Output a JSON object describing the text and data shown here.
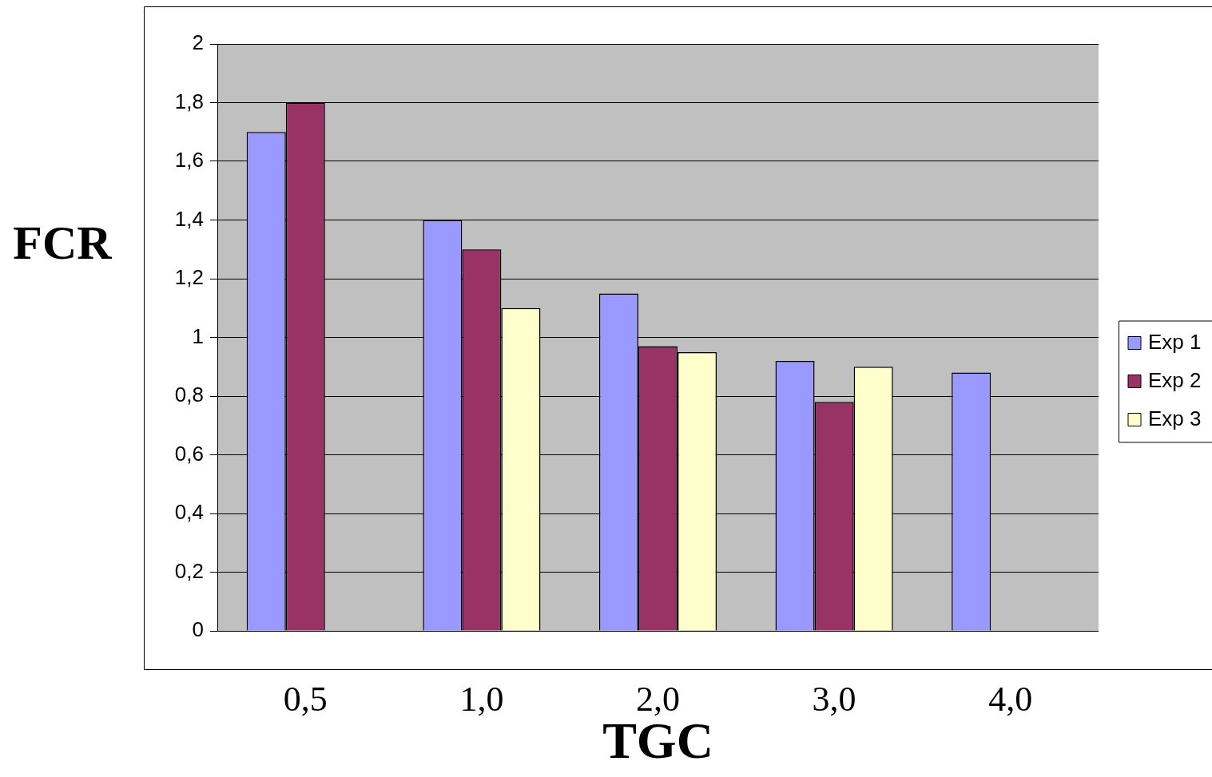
{
  "chart_data": {
    "type": "bar",
    "xlabel": "TGC",
    "ylabel": "FCR",
    "categories": [
      "0,5",
      "1,0",
      "2,0",
      "3,0",
      "4,0"
    ],
    "series": [
      {
        "name": "Exp 1",
        "color": "#9999ff",
        "values": [
          1.7,
          1.4,
          1.15,
          0.92,
          0.88
        ]
      },
      {
        "name": "Exp 2",
        "color": "#993366",
        "values": [
          1.8,
          1.3,
          0.97,
          0.78,
          null
        ]
      },
      {
        "name": "Exp 3",
        "color": "#ffffcc",
        "values": [
          null,
          1.1,
          0.95,
          0.9,
          null
        ]
      }
    ],
    "ylim": [
      0,
      2
    ],
    "yticks": [
      0,
      {
        "value": 0.2,
        "label": "0,2"
      },
      {
        "value": 0.4,
        "label": "0,4"
      },
      {
        "value": 0.6,
        "label": "0,6"
      },
      {
        "value": 0.8,
        "label": "0,8"
      },
      1,
      {
        "value": 1.2,
        "label": "1,2"
      },
      {
        "value": 1.4,
        "label": "1,4"
      },
      {
        "value": 1.6,
        "label": "1,6"
      },
      {
        "value": 1.8,
        "label": "1,8"
      },
      2
    ],
    "grid": "y",
    "legend": "right"
  }
}
